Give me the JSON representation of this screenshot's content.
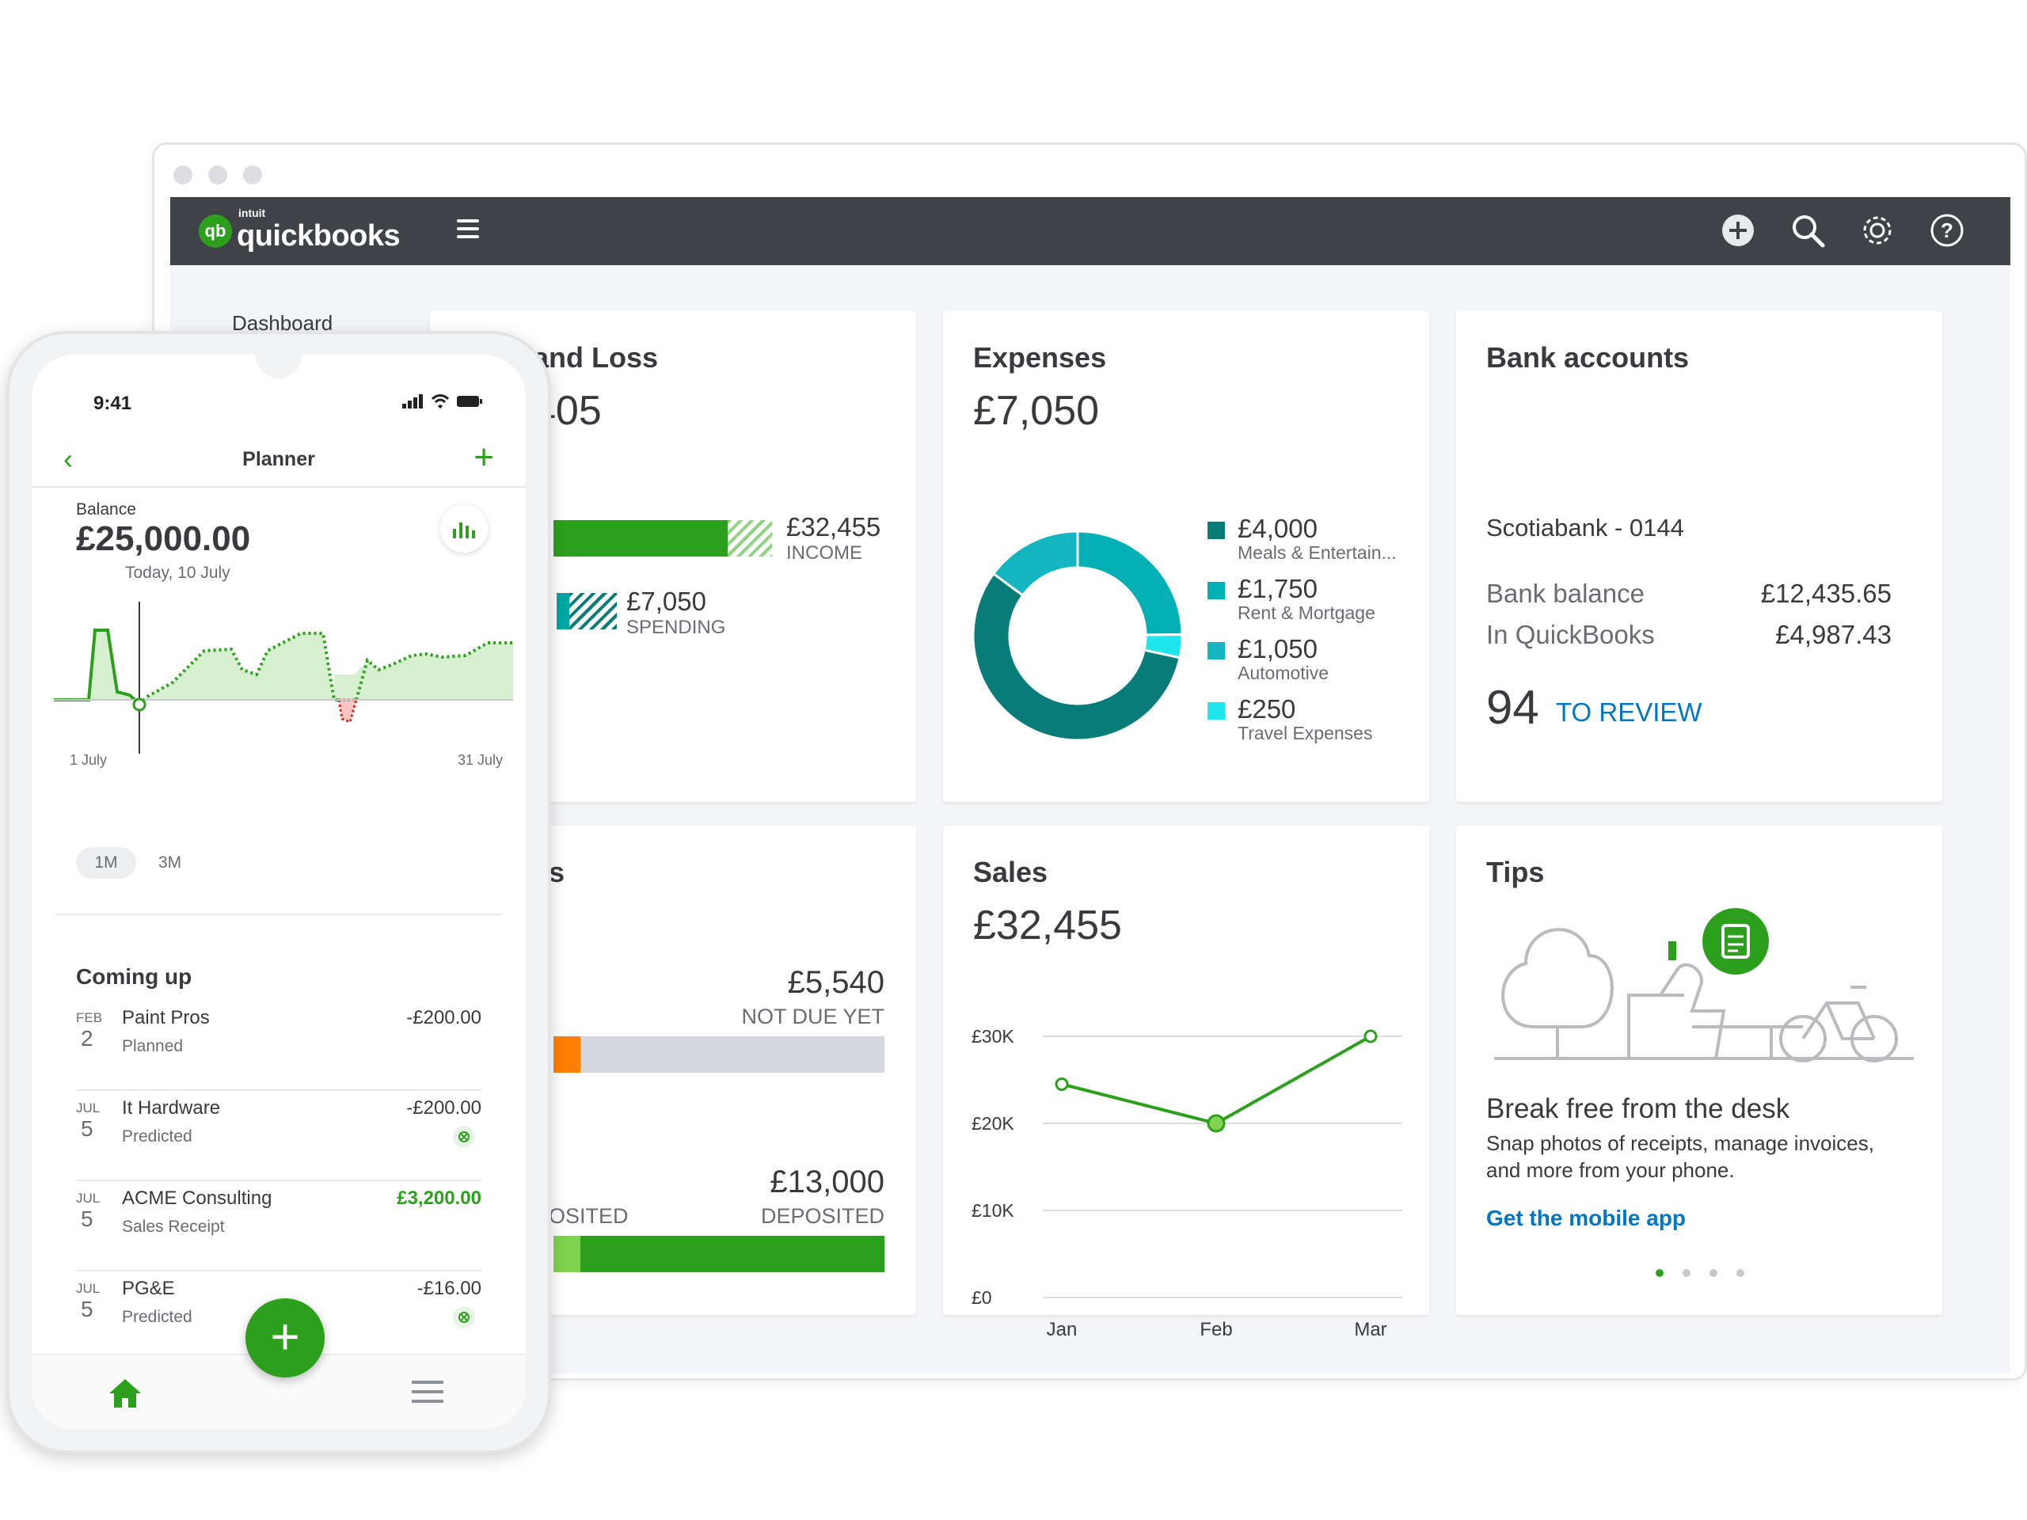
{
  "desktop": {
    "brand_small": "intuit",
    "brand": "quickbooks",
    "header_icons": [
      "plus-icon",
      "search-icon",
      "gear-icon",
      "help-icon"
    ],
    "nav_label": "Dashboard",
    "pl": {
      "title": "and Loss",
      "amount": "405",
      "income_value": "£32,455",
      "income_label": "INCOME",
      "spending_value": "£7,050",
      "spending_label": "SPENDING"
    },
    "expenses": {
      "title": "Expenses",
      "amount": "£7,050",
      "items": [
        {
          "value": "£4,000",
          "label": "Meals & Entertain...",
          "color": "#077c79"
        },
        {
          "value": "£1,750",
          "label": "Rent & Mortgage",
          "color": "#00b0b5"
        },
        {
          "value": "£1,050",
          "label": "Automotive",
          "color": "#13b5c0"
        },
        {
          "value": "£250",
          "label": "Travel Expenses",
          "color": "#21e5ec"
        }
      ]
    },
    "bank": {
      "title": "Bank accounts",
      "account_name": "Scotiabank - 0144",
      "bank_balance_label": "Bank balance",
      "bank_balance_value": "£12,435.65",
      "qb_label": "In QuickBooks",
      "qb_value": "£4,987.43",
      "review_count": "94",
      "review_label": "TO REVIEW"
    },
    "invoices": {
      "title": "es",
      "not_due_value": "£5,540",
      "not_due_label": "NOT DUE YET",
      "deposited_value": "£13,000",
      "deposited_label": "DEPOSITED",
      "left_partial_label": "OSITED"
    },
    "sales": {
      "title": "Sales",
      "amount": "£32,455"
    },
    "tips": {
      "title": "Tips",
      "heading": "Break free from the desk",
      "body_line1": "Snap photos of receipts, manage invoices,",
      "body_line2": "and more from your phone.",
      "link": "Get the mobile app",
      "carousel_active": 0,
      "carousel_count": 4
    }
  },
  "chart_data": {
    "type": "line",
    "categories": [
      "Jan",
      "Feb",
      "Mar"
    ],
    "values": [
      24500,
      20000,
      30000
    ],
    "yticks": [
      "£30K",
      "£20K",
      "£10K",
      "£0"
    ],
    "ylim": [
      0,
      30000
    ],
    "color": "#2ca01c"
  },
  "phone": {
    "time": "9:41",
    "title": "Planner",
    "balance_label": "Balance",
    "balance_value": "£25,000.00",
    "today_label": "Today, 10 July",
    "start_label": "1 July",
    "end_label": "31 July",
    "range_1m": "1M",
    "range_3m": "3M",
    "coming_up_title": "Coming up",
    "coming_up": [
      {
        "month": "FEB",
        "day": "2",
        "name": "Paint Pros",
        "status": "Planned",
        "amount": "-£200.00",
        "positive": false,
        "tag": false
      },
      {
        "month": "JUL",
        "day": "5",
        "name": "It Hardware",
        "status": "Predicted",
        "amount": "-£200.00",
        "positive": false,
        "tag": true
      },
      {
        "month": "JUL",
        "day": "5",
        "name": "ACME Consulting",
        "status": "Sales Receipt",
        "amount": "£3,200.00",
        "positive": true,
        "tag": false
      },
      {
        "month": "JUL",
        "day": "5",
        "name": "PG&E",
        "status": "Predicted",
        "amount": "-£16.00",
        "positive": false,
        "tag": true
      }
    ]
  }
}
